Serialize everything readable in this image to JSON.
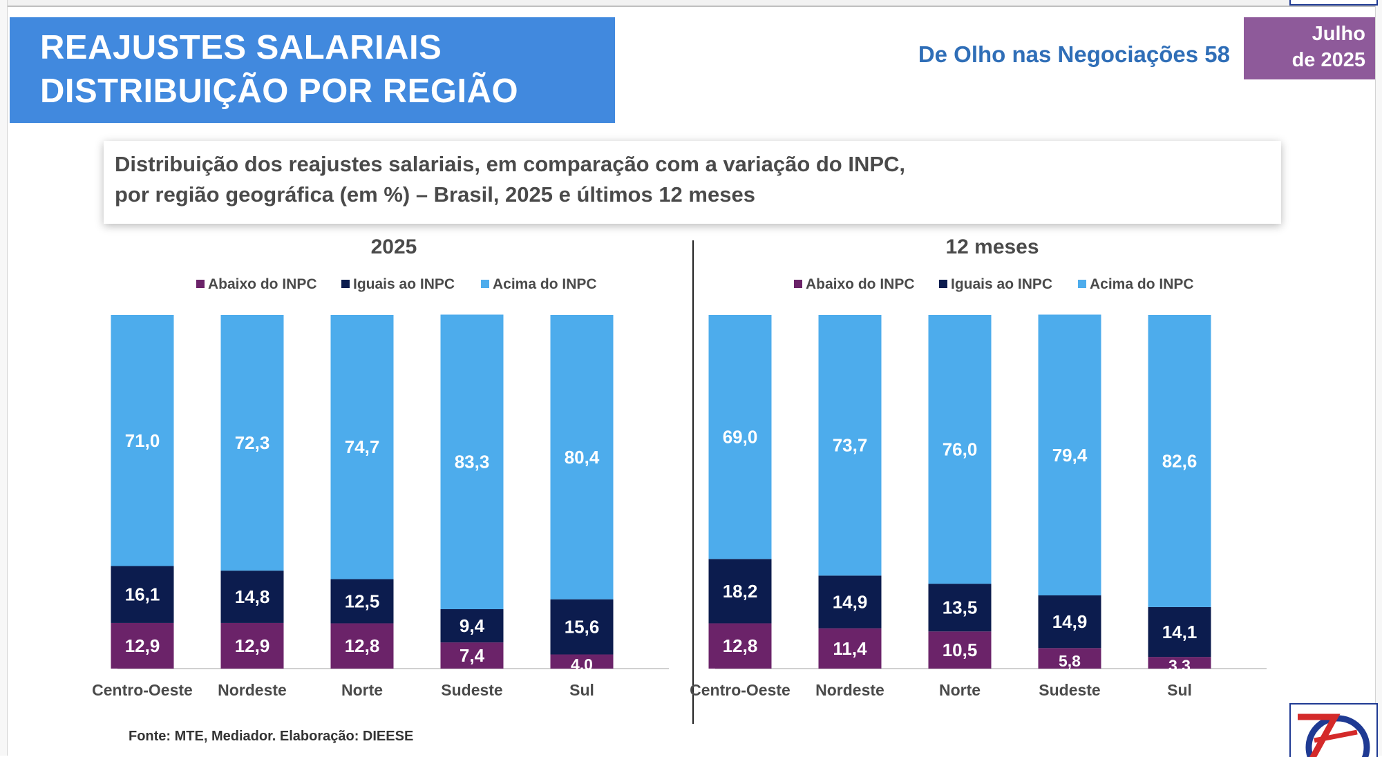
{
  "header": {
    "title_line1": "REAJUSTES SALARIAIS",
    "title_line2": "DISTRIBUIÇÃO POR REGIÃO",
    "newsletter": "De Olho nas Negociações 58",
    "date_line1": "Julho",
    "date_line2": "de 2025"
  },
  "subtitle": {
    "line1": "Distribuição dos reajustes salariais, em comparação com a variação do INPC,",
    "line2": "por região geográfica (em %) – Brasil, 2025 e últimos 12 meses"
  },
  "footer": {
    "source": "Fonte: MTE, Mediador. Elaboração: DIEESE"
  },
  "colors": {
    "title_bg": "#4189de",
    "date_bg": "#8e5a9a",
    "abaixo": "#6b2369",
    "iguais": "#0c1c4e",
    "acima": "#4dacec"
  },
  "logo": {
    "icon": "dieese-logo-icon"
  },
  "chart_data": [
    {
      "type": "bar",
      "stacked": true,
      "title": "2025",
      "legend_placement": "top",
      "grid": false,
      "ylim": [
        0,
        100
      ],
      "categories": [
        "Centro-Oeste",
        "Nordeste",
        "Norte",
        "Sudeste",
        "Sul"
      ],
      "series": [
        {
          "name": "Abaixo do INPC",
          "values": [
            12.9,
            12.9,
            12.8,
            7.4,
            4.0
          ],
          "labels": [
            "12,9",
            "12,9",
            "12,8",
            "7,4",
            "4,0"
          ]
        },
        {
          "name": "Iguais ao INPC",
          "values": [
            16.1,
            14.8,
            12.5,
            9.4,
            15.6
          ],
          "labels": [
            "16,1",
            "14,8",
            "12,5",
            "9,4",
            "15,6"
          ]
        },
        {
          "name": "Acima do INPC",
          "values": [
            71.0,
            72.3,
            74.7,
            83.3,
            80.4
          ],
          "labels": [
            "71,0",
            "72,3",
            "74,7",
            "83,3",
            "80,4"
          ]
        }
      ]
    },
    {
      "type": "bar",
      "stacked": true,
      "title": "12 meses",
      "legend_placement": "top",
      "grid": false,
      "ylim": [
        0,
        100
      ],
      "categories": [
        "Centro-Oeste",
        "Nordeste",
        "Norte",
        "Sudeste",
        "Sul"
      ],
      "series": [
        {
          "name": "Abaixo do INPC",
          "values": [
            12.8,
            11.4,
            10.5,
            5.8,
            3.3
          ],
          "labels": [
            "12,8",
            "11,4",
            "10,5",
            "5,8",
            "3,3"
          ]
        },
        {
          "name": "Iguais ao INPC",
          "values": [
            18.2,
            14.9,
            13.5,
            14.9,
            14.1
          ],
          "labels": [
            "18,2",
            "14,9",
            "13,5",
            "14,9",
            "14,1"
          ]
        },
        {
          "name": "Acima do INPC",
          "values": [
            69.0,
            73.7,
            76.0,
            79.4,
            82.6
          ],
          "labels": [
            "69,0",
            "73,7",
            "76,0",
            "79,4",
            "82,6"
          ]
        }
      ]
    }
  ]
}
